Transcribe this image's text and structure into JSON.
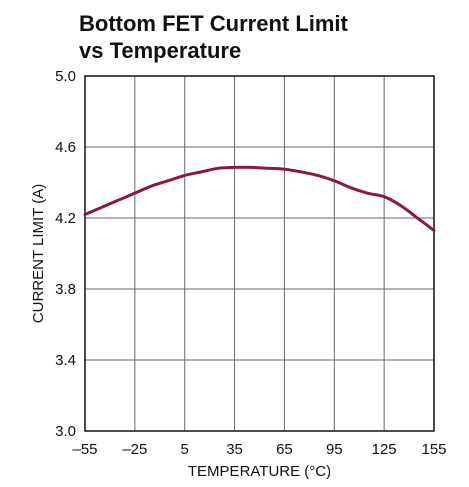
{
  "chart_data": {
    "type": "line",
    "title_line1": "Bottom FET Current Limit",
    "title_line2": "vs Temperature",
    "xlabel": "TEMPERATURE (°C)",
    "ylabel": "CURRENT LIMIT (A)",
    "xlim": [
      -55,
      155
    ],
    "ylim": [
      3.0,
      5.0
    ],
    "x_ticks": [
      -55,
      -25,
      5,
      35,
      65,
      95,
      125,
      155
    ],
    "x_tick_labels": [
      "–55",
      "–25",
      "5",
      "35",
      "65",
      "95",
      "125",
      "155"
    ],
    "y_ticks": [
      3.0,
      3.4,
      3.8,
      4.2,
      4.6,
      5.0
    ],
    "y_tick_labels": [
      "3.0",
      "3.4",
      "3.8",
      "4.2",
      "4.6",
      "5.0"
    ],
    "grid": true,
    "series": [
      {
        "color": "#8b1a3a",
        "x": [
          -55,
          -45,
          -35,
          -25,
          -15,
          -5,
          5,
          15,
          25,
          35,
          45,
          55,
          65,
          75,
          85,
          95,
          105,
          115,
          125,
          135,
          145,
          155
        ],
        "y": [
          4.22,
          4.26,
          4.3,
          4.34,
          4.38,
          4.41,
          4.44,
          4.46,
          4.48,
          4.485,
          4.485,
          4.48,
          4.475,
          4.46,
          4.44,
          4.41,
          4.37,
          4.34,
          4.32,
          4.27,
          4.2,
          4.13
        ]
      }
    ]
  }
}
